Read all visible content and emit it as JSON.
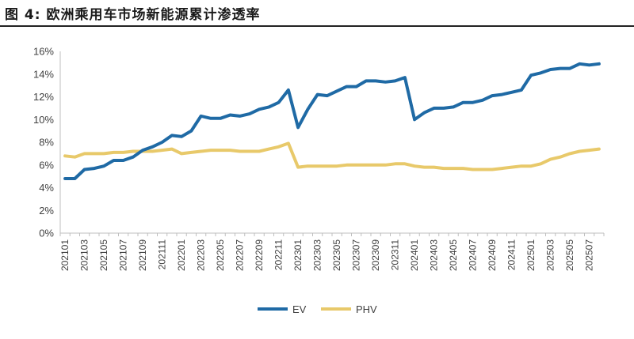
{
  "figure": {
    "title": "图 4:  欧洲乘用车市场新能源累计渗透率"
  },
  "chart_data": {
    "type": "line",
    "title": "欧洲乘用车市场新能源累计渗透率",
    "xlabel": "",
    "ylabel": "",
    "ylim": [
      0,
      16
    ],
    "yticks": [
      "0%",
      "2%",
      "4%",
      "6%",
      "8%",
      "10%",
      "12%",
      "14%",
      "16%"
    ],
    "grid": false,
    "legend_position": "bottom",
    "categories": [
      "202101",
      "202102",
      "202103",
      "202104",
      "202105",
      "202106",
      "202107",
      "202108",
      "202109",
      "202110",
      "202111",
      "202112",
      "202201",
      "202202",
      "202203",
      "202204",
      "202205",
      "202206",
      "202207",
      "202208",
      "202209",
      "202210",
      "202211",
      "202212",
      "202301",
      "202302",
      "202303",
      "202304",
      "202305",
      "202306",
      "202307",
      "202308",
      "202309",
      "202310",
      "202311",
      "202312",
      "202401",
      "202402",
      "202403",
      "202404",
      "202405",
      "202406",
      "202407",
      "202408",
      "202409",
      "202410",
      "202411",
      "202412",
      "202501",
      "202502",
      "202503",
      "202504",
      "202505",
      "202506",
      "202507",
      "202508"
    ],
    "tick_labels": [
      "202101",
      "202103",
      "202105",
      "202107",
      "202109",
      "202111",
      "202201",
      "202203",
      "202205",
      "202207",
      "202209",
      "202211",
      "202301",
      "202303",
      "202305",
      "202307",
      "202309",
      "202311",
      "202401",
      "202403",
      "202405",
      "202407",
      "202409",
      "202411",
      "202501",
      "202503",
      "202505",
      "202507"
    ],
    "series": [
      {
        "name": "EV",
        "color": "#1f6aa5",
        "values": [
          4.8,
          4.8,
          5.6,
          5.7,
          5.9,
          6.4,
          6.4,
          6.7,
          7.3,
          7.6,
          8.0,
          8.6,
          8.5,
          9.0,
          10.3,
          10.1,
          10.1,
          10.4,
          10.3,
          10.5,
          10.9,
          11.1,
          11.5,
          12.6,
          9.3,
          10.9,
          12.2,
          12.1,
          12.5,
          12.9,
          12.9,
          13.4,
          13.4,
          13.3,
          13.4,
          13.7,
          10.0,
          10.6,
          11.0,
          11.0,
          11.1,
          11.5,
          11.5,
          11.7,
          12.1,
          12.2,
          12.4,
          12.6,
          13.9,
          14.1,
          14.4,
          14.5,
          14.5,
          14.9,
          14.8,
          14.9
        ]
      },
      {
        "name": "PHV",
        "color": "#e8c96a",
        "values": [
          6.8,
          6.7,
          7.0,
          7.0,
          7.0,
          7.1,
          7.1,
          7.2,
          7.2,
          7.2,
          7.3,
          7.4,
          7.0,
          7.1,
          7.2,
          7.3,
          7.3,
          7.3,
          7.2,
          7.2,
          7.2,
          7.4,
          7.6,
          7.9,
          5.8,
          5.9,
          5.9,
          5.9,
          5.9,
          6.0,
          6.0,
          6.0,
          6.0,
          6.0,
          6.1,
          6.1,
          5.9,
          5.8,
          5.8,
          5.7,
          5.7,
          5.7,
          5.6,
          5.6,
          5.6,
          5.7,
          5.8,
          5.9,
          5.9,
          6.1,
          6.5,
          6.7,
          7.0,
          7.2,
          7.3,
          7.4
        ]
      }
    ]
  }
}
